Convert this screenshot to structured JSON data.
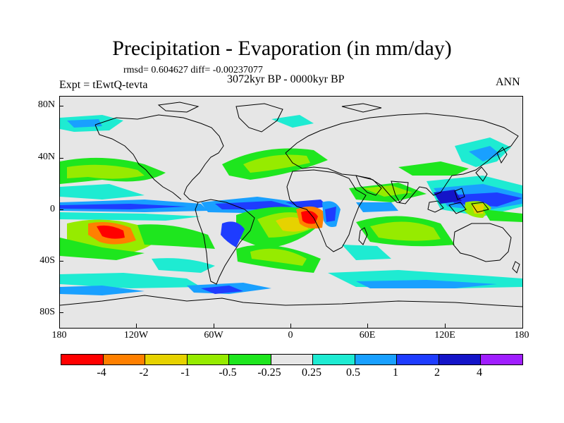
{
  "title": "Precipitation - Evaporation (in mm/day)",
  "stats": "rmsd= 0.604627 diff= -0.00237077",
  "experiment": "Expt = tEwtQ-tevta",
  "period": "3072kyr BP - 0000kyr BP",
  "season": "ANN",
  "lat_labels": [
    "80N",
    "40N",
    "0",
    "40S",
    "80S"
  ],
  "lon_labels": [
    "180",
    "120W",
    "60W",
    "0",
    "60E",
    "120E",
    "180"
  ],
  "colorbar": {
    "colors": [
      "#ff0000",
      "#ff8000",
      "#e6d200",
      "#96eb00",
      "#1ee61e",
      "#e6e6e6",
      "#1eebd2",
      "#19a0ff",
      "#1e3cff",
      "#1414c8",
      "#a01eff"
    ],
    "labels": [
      "-4",
      "-2",
      "-1",
      "-0.5",
      "-0.25",
      "0.25",
      "0.5",
      "1",
      "2",
      "4"
    ]
  }
}
